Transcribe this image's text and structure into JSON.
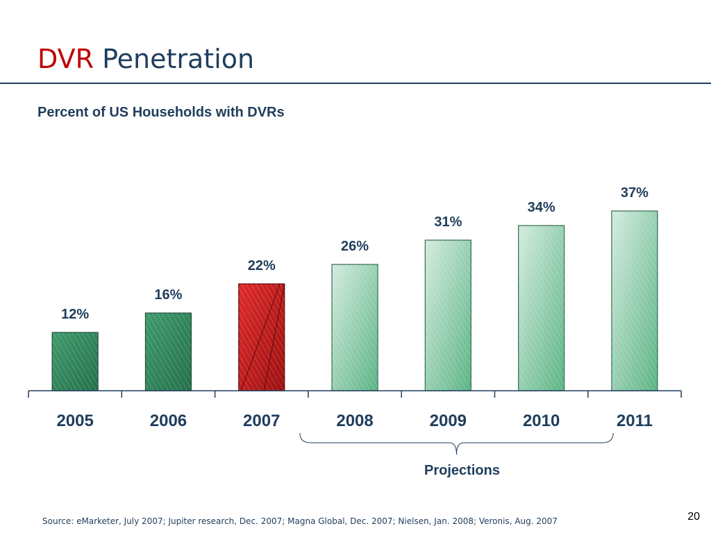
{
  "slide": {
    "title_accent": "DVR",
    "title_rest": "Penetration",
    "source": "Source: eMarketer, July 2007; Jupiter research, Dec. 2007; Magna Global, Dec. 2007; Nielsen, Jan. 2008; Veronis, Aug. 2007",
    "page_number": "20"
  },
  "colors": {
    "title_accent": "#c00000",
    "title_text": "#1f3d5c",
    "actual_bar": "#2e8b5a",
    "highlight_bar": "#d42020",
    "projection_bar": "#b9dfc8"
  },
  "chart_data": {
    "type": "bar",
    "title": "Percent of US Households with DVRs",
    "categories": [
      "2005",
      "2006",
      "2007",
      "2008",
      "2009",
      "2010",
      "2011"
    ],
    "values": [
      12,
      16,
      22,
      26,
      31,
      34,
      37
    ],
    "data_labels": [
      "12%",
      "16%",
      "22%",
      "26%",
      "31%",
      "34%",
      "37%"
    ],
    "unit": "%",
    "ylim": [
      0,
      48
    ],
    "grid": false,
    "bar_styles": [
      "actual",
      "actual",
      "highlight",
      "projection",
      "projection",
      "projection",
      "projection"
    ],
    "annotations": [
      {
        "label": "Projections",
        "from": "2008",
        "to": "2011",
        "shape": "brace"
      }
    ]
  }
}
